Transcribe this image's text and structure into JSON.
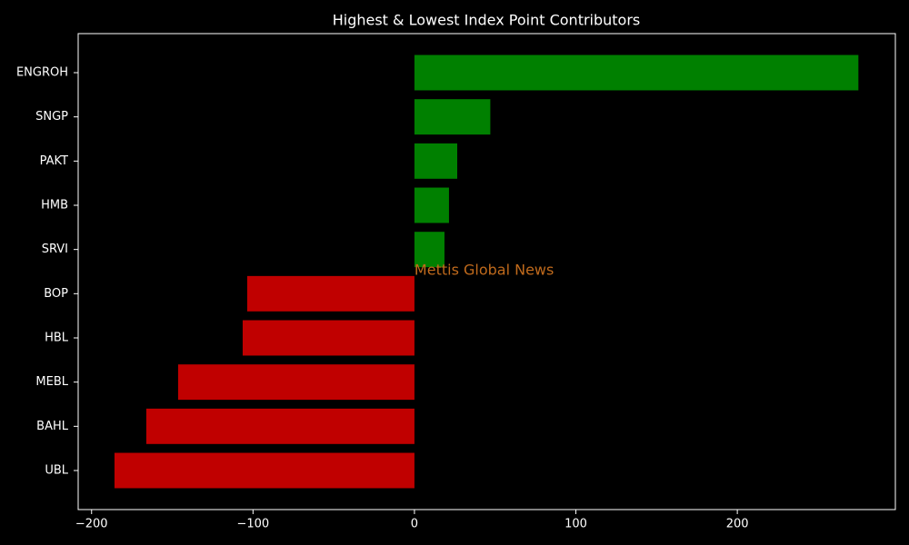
{
  "chart_data": {
    "type": "barh",
    "title": "Highest & Lowest Index Point Contributors",
    "annotation": "Mettis Global News",
    "categories": [
      "ENGROH",
      "SNGP",
      "PAKT",
      "HMB",
      "SRVI",
      "BOP",
      "HBL",
      "MEBL",
      "BAHL",
      "UBL"
    ],
    "values": [
      275,
      47,
      26.5,
      21.4,
      18.6,
      -103.6,
      -106.4,
      -146.4,
      -166.1,
      -185.8
    ],
    "colors": [
      "#008000",
      "#008000",
      "#008000",
      "#008000",
      "#008000",
      "#c00000",
      "#c00000",
      "#c00000",
      "#c00000",
      "#c00000"
    ],
    "xlim": [
      -208.3,
      297.9
    ],
    "xticks": [
      {
        "value": -200,
        "label": "−200"
      },
      {
        "value": -100,
        "label": "−100"
      },
      0,
      100,
      200
    ],
    "grid": false
  }
}
